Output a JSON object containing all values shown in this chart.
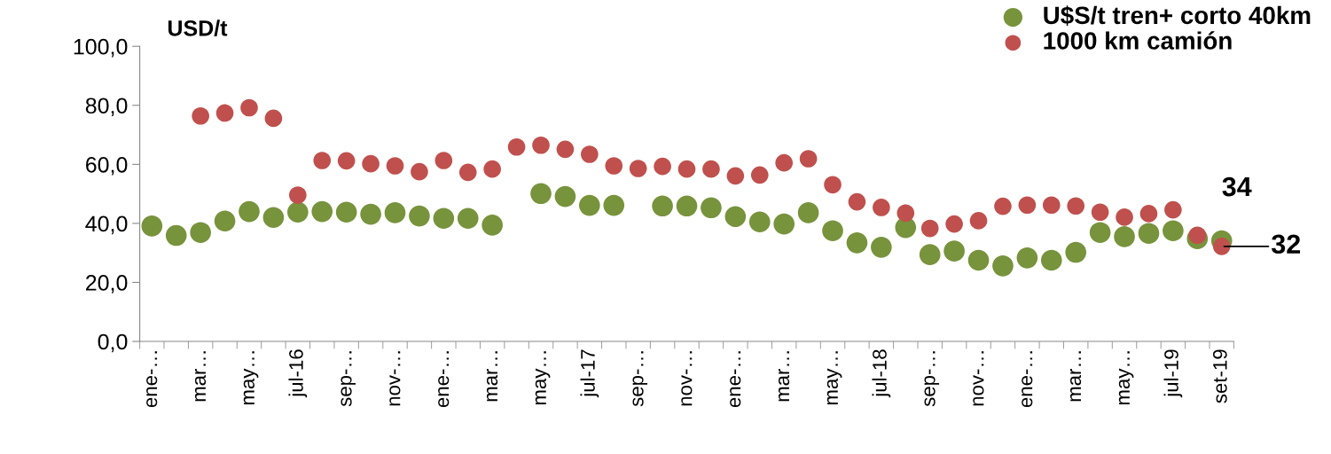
{
  "chart_data": {
    "type": "scatter",
    "ylabel": "USD/t",
    "categories": [
      "ene-…",
      null,
      "mar…",
      null,
      "may…",
      null,
      "jul-16",
      null,
      "sep-…",
      null,
      "nov-…",
      null,
      "ene-…",
      null,
      "mar…",
      null,
      "may…",
      null,
      "jul-17",
      null,
      "sep-…",
      null,
      "nov-…",
      null,
      "ene-…",
      null,
      "mar…",
      null,
      "may…",
      null,
      "jul-18",
      null,
      "sep-…",
      null,
      "nov-…",
      null,
      "ene-…",
      null,
      "mar…",
      null,
      "may…",
      null,
      "jul-19",
      null,
      "set-19"
    ],
    "series": [
      {
        "name": "U$S/t tren+ corto 40km",
        "color": "#77933c",
        "values": [
          39.1,
          35.9,
          36.9,
          40.8,
          44.0,
          42.0,
          43.8,
          44.0,
          43.8,
          43.1,
          43.6,
          42.5,
          41.7,
          41.7,
          39.4,
          null,
          50.1,
          49.1,
          46.1,
          46.1,
          null,
          45.9,
          45.9,
          45.3,
          42.3,
          40.5,
          39.8,
          43.6,
          37.5,
          33.4,
          31.9,
          38.6,
          29.4,
          30.6,
          27.5,
          25.6,
          28.3,
          27.5,
          30.2,
          36.9,
          35.5,
          36.6,
          37.5,
          34.8,
          34.1
        ]
      },
      {
        "name": "1000 km camión",
        "color": "#c0504d",
        "values": [
          null,
          null,
          76.4,
          77.4,
          79.2,
          75.6,
          49.6,
          61.3,
          61.2,
          60.2,
          59.5,
          57.5,
          61.3,
          57.3,
          58.4,
          65.9,
          66.5,
          65.1,
          63.4,
          59.5,
          58.6,
          59.3,
          58.4,
          58.4,
          56.1,
          56.4,
          60.5,
          61.9,
          53.1,
          47.3,
          45.4,
          43.5,
          38.3,
          39.8,
          40.9,
          45.8,
          46.2,
          46.2,
          45.9,
          43.8,
          42.1,
          43.3,
          44.6,
          36.0,
          32.2
        ]
      }
    ],
    "ylim": [
      0,
      100
    ],
    "yticks": [
      {
        "value": 0,
        "label": "0,0"
      },
      {
        "value": 20,
        "label": "20,0"
      },
      {
        "value": 40,
        "label": "40,0"
      },
      {
        "value": 60,
        "label": "60,0"
      },
      {
        "value": 80,
        "label": "80,0"
      },
      {
        "value": 100,
        "label": "100,0"
      }
    ],
    "annotations": [
      {
        "text": "34",
        "x": "set-19",
        "y": 34.1
      },
      {
        "text": "32",
        "x": "set-19",
        "y": 32.2
      }
    ],
    "marker": "circle",
    "grid": false,
    "legend": "top right"
  }
}
